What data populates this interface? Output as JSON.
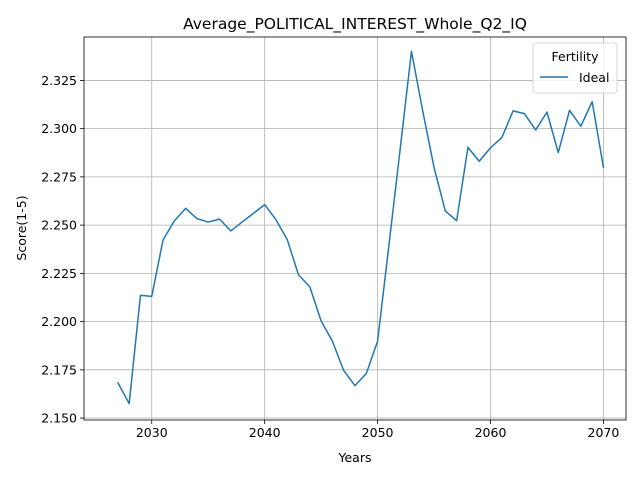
{
  "chart_data": {
    "type": "line",
    "title": "Average_POLITICAL_INTEREST_Whole_Q2_IQ",
    "xlabel": "Years",
    "ylabel": "Score(1-5)",
    "xlim": [
      2024,
      2072
    ],
    "ylim": [
      2.149,
      2.3475
    ],
    "xticks": [
      2030,
      2040,
      2050,
      2060,
      2070
    ],
    "xtick_labels": [
      "2030",
      "2040",
      "2050",
      "2060",
      "2070"
    ],
    "yticks": [
      2.15,
      2.175,
      2.2,
      2.225,
      2.25,
      2.275,
      2.3,
      2.325
    ],
    "ytick_labels": [
      "2.150",
      "2.175",
      "2.200",
      "2.225",
      "2.250",
      "2.275",
      "2.300",
      "2.325"
    ],
    "grid": true,
    "legend": {
      "title": "Fertility",
      "placement": "top-right"
    },
    "x": [
      2027,
      2028,
      2029,
      2030,
      2031,
      2032,
      2033,
      2034,
      2035,
      2036,
      2037,
      2038,
      2039,
      2040,
      2041,
      2042,
      2043,
      2044,
      2045,
      2046,
      2047,
      2048,
      2049,
      2050,
      2051,
      2052,
      2053,
      2054,
      2055,
      2056,
      2057,
      2058,
      2059,
      2060,
      2061,
      2062,
      2063,
      2064,
      2065,
      2066,
      2067,
      2068,
      2069,
      2070
    ],
    "series": [
      {
        "name": "Ideal",
        "color": "#1f77b4",
        "values": [
          2.1683,
          2.1575,
          2.2136,
          2.2131,
          2.2423,
          2.2522,
          2.2587,
          2.2534,
          2.2516,
          2.2531,
          2.247,
          2.2516,
          2.2561,
          2.2606,
          2.2528,
          2.2425,
          2.2242,
          2.218,
          2.2003,
          2.1898,
          2.1746,
          2.1668,
          2.1731,
          2.1898,
          2.2394,
          2.2894,
          2.3401,
          2.3091,
          2.2799,
          2.2573,
          2.2523,
          2.2903,
          2.2831,
          2.2901,
          2.2953,
          2.3092,
          2.3078,
          2.2993,
          2.3086,
          2.2876,
          2.3095,
          2.3013,
          2.314,
          2.28
        ]
      }
    ]
  }
}
